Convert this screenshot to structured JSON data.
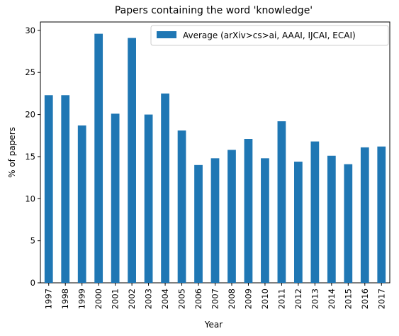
{
  "chart_data": {
    "type": "bar",
    "title": "Papers containing the word 'knowledge'",
    "xlabel": "Year",
    "ylabel": "% of papers",
    "categories": [
      "1997",
      "1998",
      "1999",
      "2000",
      "2001",
      "2002",
      "2003",
      "2004",
      "2005",
      "2006",
      "2007",
      "2008",
      "2009",
      "2010",
      "2011",
      "2012",
      "2013",
      "2014",
      "2015",
      "2016",
      "2017"
    ],
    "series": [
      {
        "name": "Average (arXiv>cs>ai, AAAI, IJCAI, ECAI)",
        "color": "#1f77b4",
        "values": [
          22.3,
          22.3,
          18.7,
          29.6,
          20.1,
          29.1,
          20.0,
          22.5,
          18.1,
          14.0,
          14.8,
          15.8,
          17.1,
          14.8,
          19.2,
          14.4,
          16.8,
          15.1,
          14.1,
          16.1,
          16.2
        ]
      }
    ],
    "ylim": [
      0,
      31
    ],
    "yticks": [
      0,
      5,
      10,
      15,
      20,
      25,
      30
    ],
    "grid": false,
    "legend": "top-right"
  }
}
